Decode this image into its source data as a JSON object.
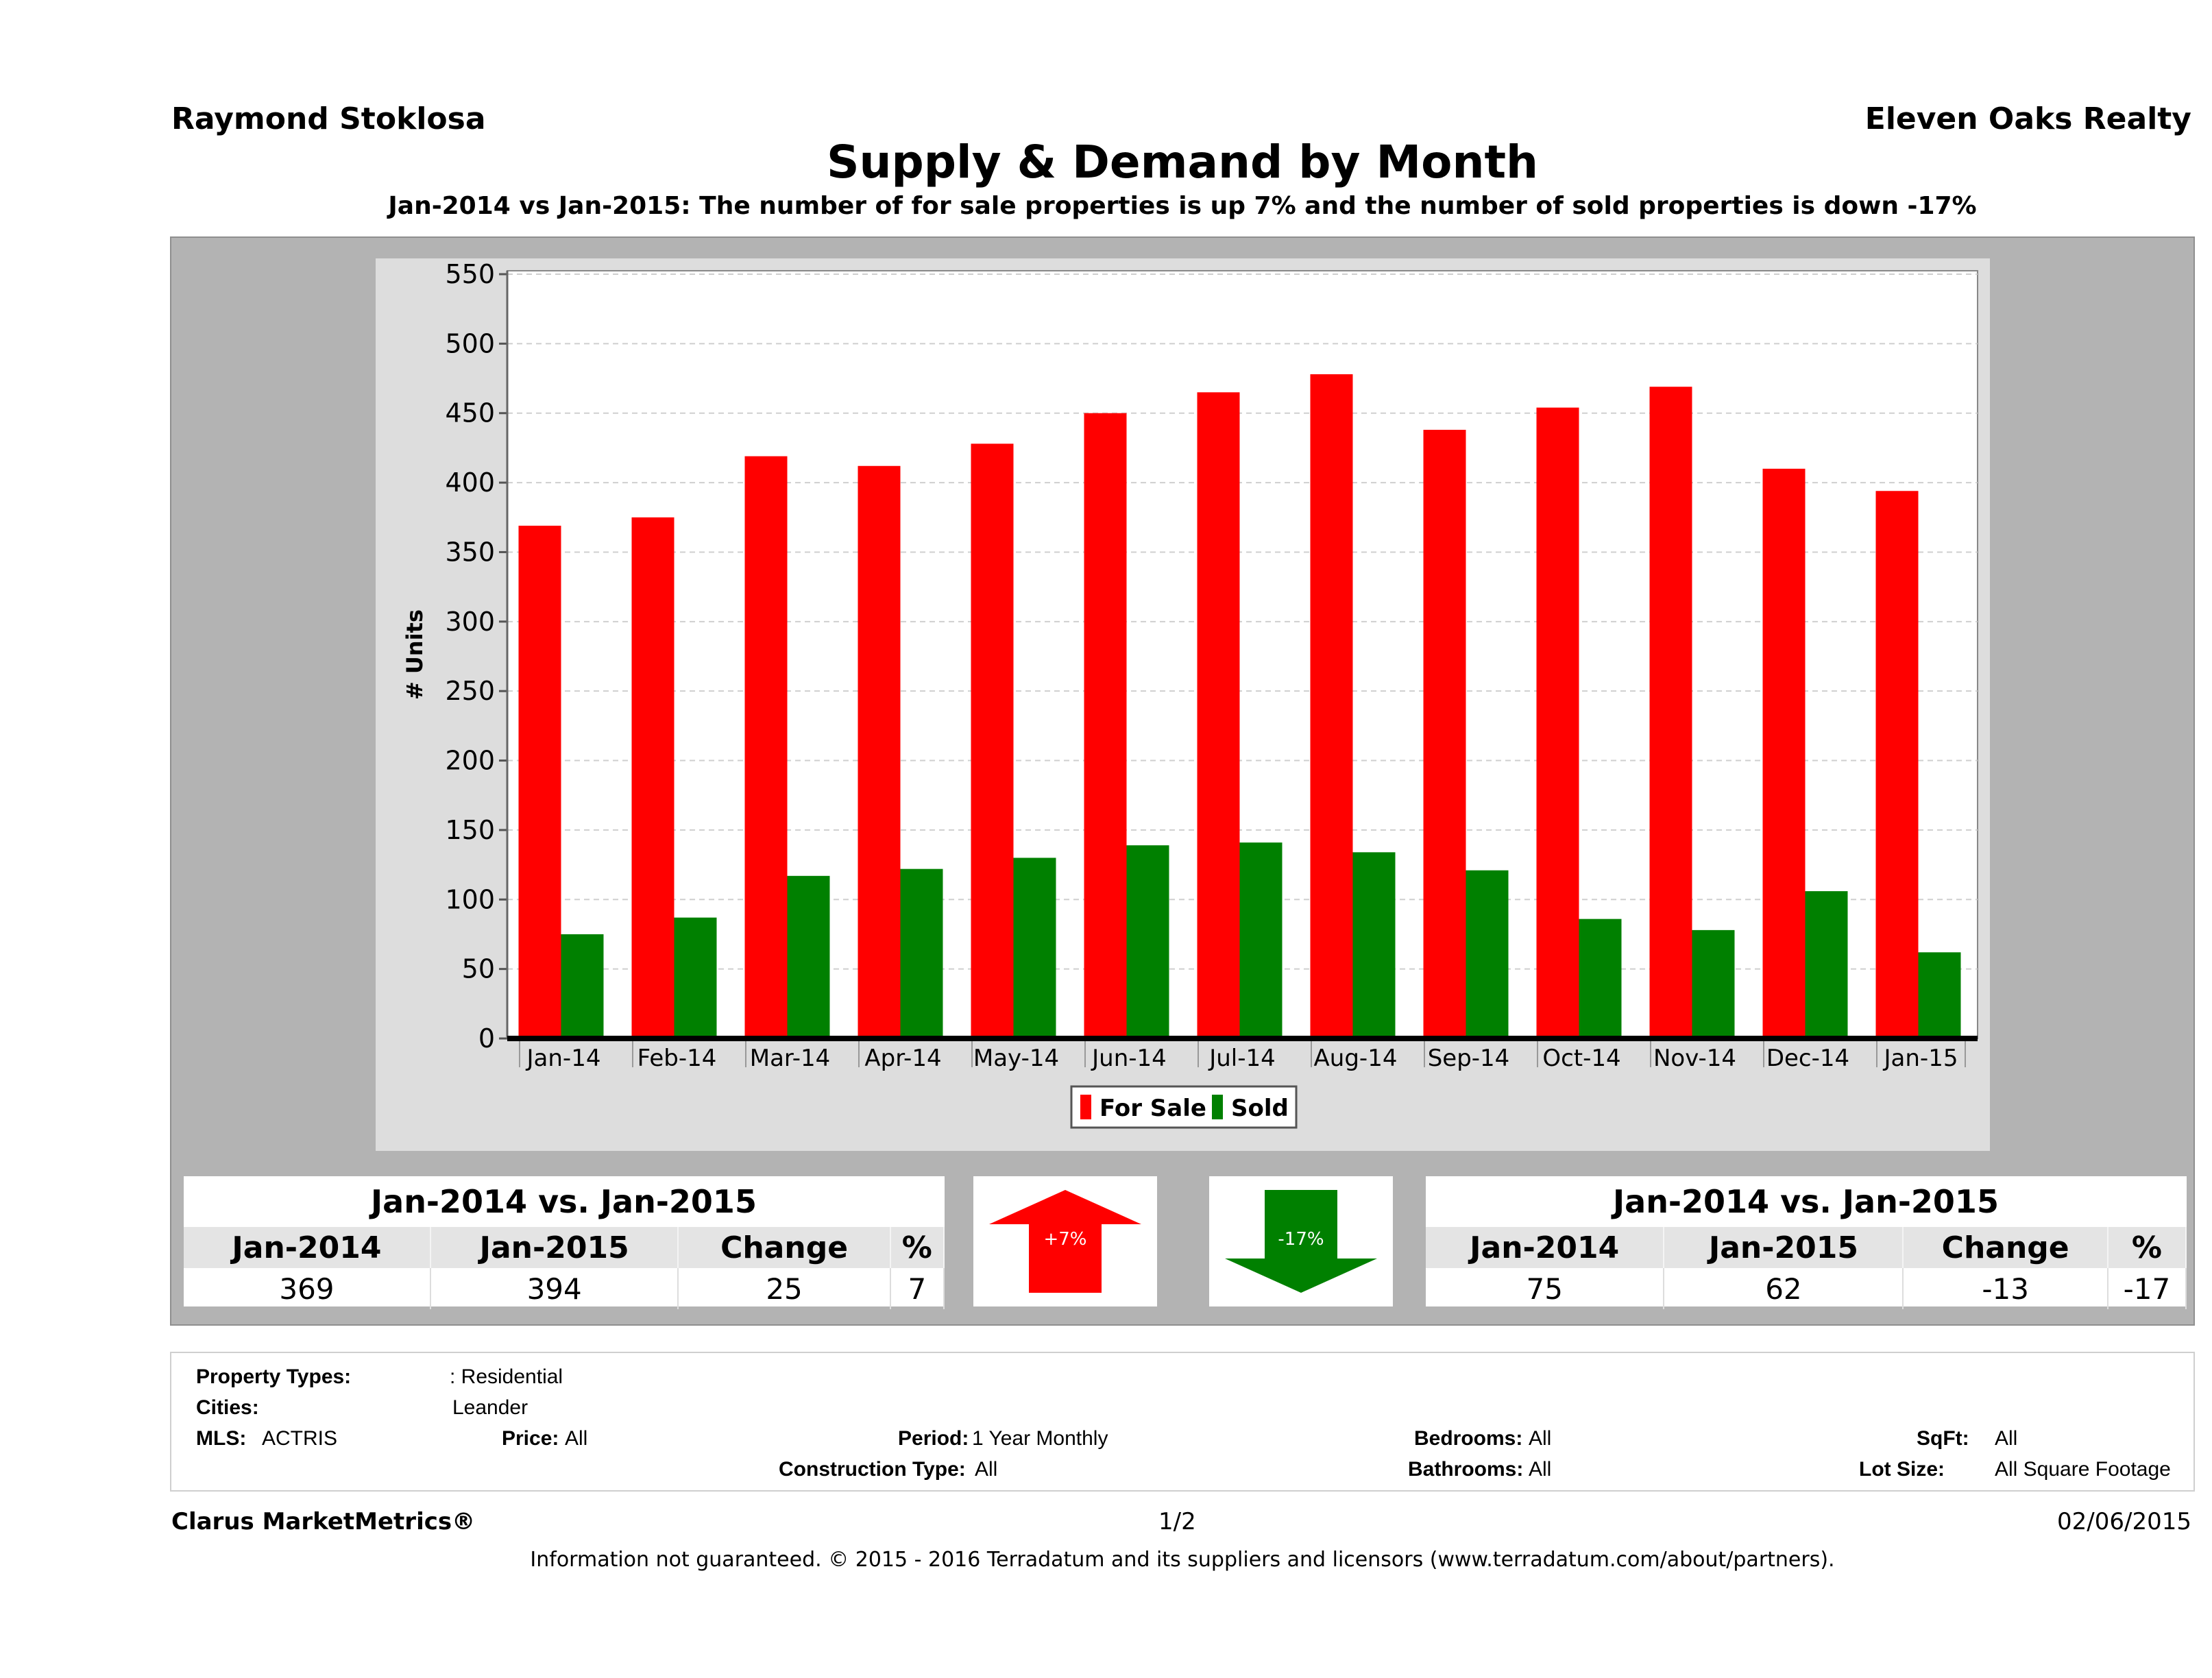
{
  "header": {
    "agent": "Raymond Stoklosa",
    "company": "Eleven Oaks Realty",
    "title": "Supply & Demand by Month",
    "subtitle": "Jan-2014 vs Jan-2015: The number of for sale properties is up 7% and the number of sold properties is down -17%"
  },
  "colors": {
    "for_sale": "#ff0000",
    "sold": "#008000"
  },
  "chart_data": {
    "type": "bar",
    "title": "Supply & Demand by Month",
    "xlabel": "",
    "ylabel": "# Units",
    "ylim": [
      0,
      550
    ],
    "yticks": [
      0,
      50,
      100,
      150,
      200,
      250,
      300,
      350,
      400,
      450,
      500,
      550
    ],
    "grid": true,
    "legend_position": "bottom-center",
    "categories": [
      "Jan-14",
      "Feb-14",
      "Mar-14",
      "Apr-14",
      "May-14",
      "Jun-14",
      "Jul-14",
      "Aug-14",
      "Sep-14",
      "Oct-14",
      "Nov-14",
      "Dec-14",
      "Jan-15"
    ],
    "series": [
      {
        "name": "For Sale",
        "values": [
          369,
          375,
          419,
          412,
          428,
          450,
          465,
          478,
          438,
          454,
          469,
          410,
          394
        ]
      },
      {
        "name": "Sold",
        "values": [
          75,
          87,
          117,
          122,
          130,
          139,
          141,
          134,
          121,
          86,
          78,
          106,
          62
        ]
      }
    ]
  },
  "for_sale_table": {
    "title": "Jan-2014 vs. Jan-2015",
    "headers": [
      "Jan-2014",
      "Jan-2015",
      "Change",
      "%"
    ],
    "values": [
      "369",
      "394",
      "25",
      "7"
    ]
  },
  "sold_table": {
    "title": "Jan-2014 vs. Jan-2015",
    "headers": [
      "Jan-2014",
      "Jan-2015",
      "Change",
      "%"
    ],
    "values": [
      "75",
      "62",
      "-13",
      "-17"
    ]
  },
  "arrows": {
    "up_label": "+7%",
    "down_label": "-17%"
  },
  "filters": {
    "property_types_label": "Property Types:",
    "property_types_value": ": Residential",
    "cities_label": "Cities:",
    "cities_value": "Leander",
    "mls_label": "MLS:",
    "mls_value": "ACTRIS",
    "price_label": "Price:",
    "price_value": "All",
    "period_label": "Period:",
    "period_value": "1 Year Monthly",
    "construction_label": "Construction Type:",
    "construction_value": "All",
    "bedrooms_label": "Bedrooms:",
    "bedrooms_value": "All",
    "bathrooms_label": "Bathrooms:",
    "bathrooms_value": "All",
    "sqft_label": "SqFt:",
    "sqft_value": "All",
    "lotsize_label": "Lot Size:",
    "lotsize_value": "All Square Footage"
  },
  "footer": {
    "brand": "Clarus MarketMetrics®",
    "page": "1/2",
    "date": "02/06/2015",
    "disclaimer": "Information not guaranteed. © 2015 - 2016 Terradatum and its suppliers and licensors (www.terradatum.com/about/partners)."
  }
}
